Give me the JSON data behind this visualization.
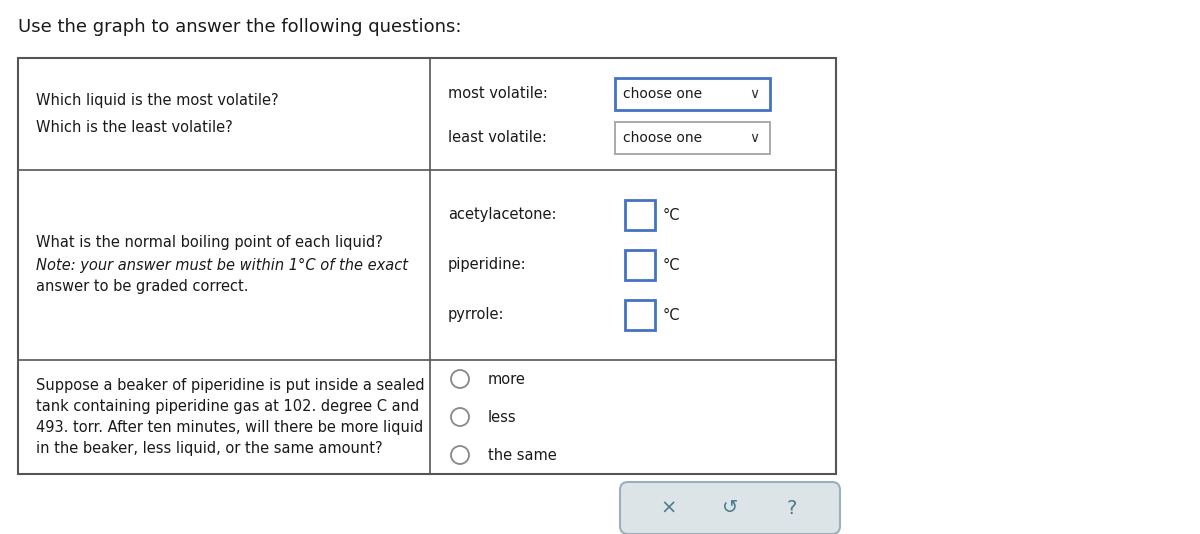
{
  "title": "Use the graph to answer the following questions:",
  "title_fontsize": 13,
  "background_color": "#ffffff",
  "text_color": "#1a1a1a",
  "row1_left_texts": [
    "Which liquid is the most volatile?",
    "Which is the least volatile?"
  ],
  "row1_right_labels": [
    "most volatile:",
    "least volatile:"
  ],
  "row1_right_dropdowns": [
    "choose one",
    "choose one"
  ],
  "row2_left_lines": [
    "What is the normal boiling point of each liquid?",
    "Note: your answer must be within 1°C of the exact",
    "answer to be graded correct."
  ],
  "row2_right_labels": [
    "acetylacetone:",
    "piperidine:",
    "pyrrole:"
  ],
  "row2_right_unit": "°C",
  "row3_left_lines": [
    "Suppose a beaker of piperidine is put inside a sealed",
    "tank containing piperidine gas at 102. degree C and",
    "493. torr. After ten minutes, will there be more liquid",
    "in the beaker, less liquid, or the same amount?"
  ],
  "row3_right_options": [
    "more",
    "less",
    "the same"
  ],
  "bottom_buttons": [
    "×",
    "↺",
    "?"
  ],
  "dropdown1_border": "#4472c4",
  "dropdown2_border": "#888888",
  "input_border": "#4472c4",
  "bottom_bar_bg": "#dde4e8",
  "bottom_bar_border": "#9ab0ba"
}
